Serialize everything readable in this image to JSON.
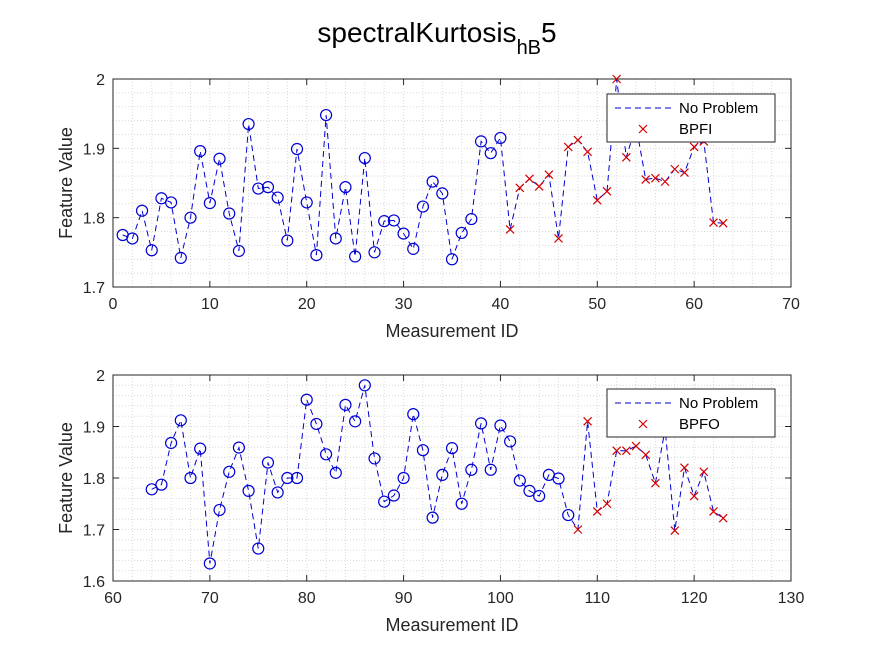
{
  "figure": {
    "title_main": "spectralKurtosis",
    "title_sub": "hB",
    "title_tail": "5"
  },
  "colors": {
    "normal": "#0000d4",
    "fault": "#d40000",
    "grid": "#d8d8d8",
    "axis": "#262626"
  },
  "chart_data": [
    {
      "type": "scatter",
      "xlabel": "Measurement ID",
      "ylabel": "Feature Value",
      "xlim": [
        0,
        70
      ],
      "ylim": [
        1.7,
        2
      ],
      "xticks": [
        0,
        10,
        20,
        30,
        40,
        50,
        60,
        70
      ],
      "yticks": [
        1.7,
        1.8,
        1.9,
        2
      ],
      "ytick_labels": [
        "1.7",
        "1.8",
        "1.9",
        "2"
      ],
      "grid": "minor dotted",
      "legend_position": "top-right",
      "series": [
        {
          "name": "No Problem",
          "marker": "circle",
          "line": "dashed",
          "x": [
            1,
            2,
            3,
            4,
            5,
            6,
            7,
            8,
            9,
            10,
            11,
            12,
            13,
            14,
            15,
            16,
            17,
            18,
            19,
            20,
            21,
            22,
            23,
            24,
            25,
            26,
            27,
            28,
            29,
            30,
            31,
            32,
            33,
            34,
            35,
            36,
            37,
            38,
            39,
            40
          ],
          "y": [
            1.775,
            1.77,
            1.81,
            1.753,
            1.828,
            1.822,
            1.742,
            1.8,
            1.896,
            1.821,
            1.885,
            1.806,
            1.752,
            1.935,
            1.842,
            1.844,
            1.829,
            1.767,
            1.899,
            1.822,
            1.746,
            1.948,
            1.77,
            1.844,
            1.744,
            1.886,
            1.75,
            1.795,
            1.796,
            1.777,
            1.755,
            1.816,
            1.852,
            1.835,
            1.74,
            1.778,
            1.798,
            1.91,
            1.893,
            1.915
          ]
        },
        {
          "name": "BPFI",
          "marker": "x",
          "line": "dashed",
          "x": [
            41,
            42,
            43,
            44,
            45,
            46,
            47,
            48,
            49,
            50,
            51,
            52,
            53,
            54,
            55,
            56,
            57,
            58,
            59,
            60,
            61,
            62,
            63
          ],
          "y": [
            1.783,
            1.843,
            1.856,
            1.845,
            1.862,
            1.77,
            1.902,
            1.912,
            1.895,
            1.825,
            1.838,
            2.0,
            1.887,
            1.933,
            1.855,
            1.857,
            1.852,
            1.87,
            1.865,
            1.902,
            1.91,
            1.793,
            1.792
          ]
        }
      ]
    },
    {
      "type": "scatter",
      "xlabel": "Measurement ID",
      "ylabel": "Feature Value",
      "xlim": [
        60,
        130
      ],
      "ylim": [
        1.6,
        2
      ],
      "xticks": [
        60,
        70,
        80,
        90,
        100,
        110,
        120,
        130
      ],
      "yticks": [
        1.6,
        1.7,
        1.8,
        1.9,
        2
      ],
      "ytick_labels": [
        "1.6",
        "1.7",
        "1.8",
        "1.9",
        "2"
      ],
      "grid": "minor dotted",
      "legend_position": "top-right",
      "series": [
        {
          "name": "No Problem",
          "marker": "circle",
          "line": "dashed",
          "x": [
            64,
            65,
            66,
            67,
            68,
            69,
            70,
            71,
            72,
            73,
            74,
            75,
            76,
            77,
            78,
            79,
            80,
            81,
            82,
            83,
            84,
            85,
            86,
            87,
            88,
            89,
            90,
            91,
            92,
            93,
            94,
            95,
            96,
            97,
            98,
            99,
            100,
            101,
            102,
            103,
            104,
            105,
            106,
            107
          ],
          "y": [
            1.778,
            1.787,
            1.868,
            1.912,
            1.8,
            1.857,
            1.634,
            1.738,
            1.812,
            1.859,
            1.775,
            1.663,
            1.83,
            1.772,
            1.8,
            1.8,
            1.952,
            1.905,
            1.846,
            1.81,
            1.942,
            1.91,
            1.98,
            1.838,
            1.754,
            1.766,
            1.8,
            1.924,
            1.854,
            1.723,
            1.806,
            1.858,
            1.75,
            1.816,
            1.906,
            1.816,
            1.902,
            1.871,
            1.795,
            1.775,
            1.765,
            1.806,
            1.799,
            1.728
          ]
        },
        {
          "name": "BPFO",
          "marker": "x",
          "line": "dashed",
          "x": [
            108,
            109,
            110,
            111,
            112,
            113,
            114,
            115,
            116,
            117,
            118,
            119,
            120,
            121,
            122,
            123
          ],
          "y": [
            1.7,
            1.91,
            1.735,
            1.75,
            1.853,
            1.853,
            1.862,
            1.845,
            1.79,
            1.895,
            1.698,
            1.82,
            1.765,
            1.812,
            1.735,
            1.722
          ]
        }
      ]
    }
  ]
}
